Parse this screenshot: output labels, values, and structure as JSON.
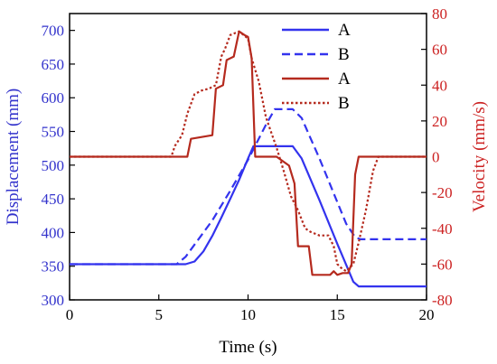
{
  "chart_data": {
    "type": "line",
    "xlabel": "Time (s)",
    "ylabel_left": "Displacement (mm)",
    "ylabel_right": "Velocity (mm/s)",
    "xlim": [
      0,
      20
    ],
    "ylim_left": [
      300,
      725
    ],
    "ylim_right": [
      -80,
      80
    ],
    "xticks": [
      0,
      5,
      10,
      15,
      20
    ],
    "yticks_left": [
      300,
      350,
      400,
      450,
      500,
      550,
      600,
      650,
      700
    ],
    "yticks_right": [
      -80,
      -60,
      -40,
      -20,
      0,
      20,
      40,
      60,
      80
    ],
    "legend_position": "top-right",
    "colors": {
      "displacement": "#3333ee",
      "velocity": "#b52a1e",
      "left_axis": "#3333cc",
      "right_axis": "#cc2222",
      "frame": "#000000"
    },
    "series": [
      {
        "name": "A",
        "axis": "left",
        "style": "solid",
        "color": "#3333ee",
        "x": [
          0,
          6.5,
          7.0,
          7.5,
          8.0,
          8.5,
          9.0,
          9.5,
          10.0,
          10.3,
          12.5,
          13.0,
          14.0,
          15.0,
          15.5,
          15.9,
          16.2,
          20
        ],
        "y": [
          353,
          353,
          357,
          372,
          395,
          422,
          450,
          478,
          510,
          528,
          528,
          510,
          448,
          383,
          352,
          327,
          320,
          320
        ]
      },
      {
        "name": "B",
        "axis": "left",
        "style": "dashed",
        "color": "#3333ee",
        "x": [
          0,
          6.0,
          6.5,
          7.0,
          8.0,
          9.0,
          10.0,
          11.0,
          11.5,
          12.5,
          13.0,
          14.0,
          15.0,
          15.5,
          16.0,
          16.3,
          20
        ],
        "y": [
          353,
          353,
          364,
          382,
          418,
          462,
          508,
          560,
          583,
          583,
          570,
          510,
          445,
          413,
          393,
          390,
          390
        ]
      },
      {
        "name": "A",
        "axis": "right",
        "style": "solid",
        "color": "#b52a1e",
        "x": [
          0,
          6.6,
          6.8,
          8.0,
          8.2,
          8.6,
          8.8,
          9.2,
          9.5,
          9.8,
          10.0,
          10.2,
          10.4,
          11.4,
          11.6,
          12.3,
          12.6,
          12.8,
          13.4,
          13.6,
          14.6,
          14.8,
          15.0,
          15.3,
          15.6,
          15.8,
          16.0,
          16.2,
          20
        ],
        "y": [
          0,
          0,
          10,
          12,
          38,
          40,
          54,
          56,
          70,
          68,
          67,
          55,
          0,
          0,
          0,
          -5,
          -15,
          -50,
          -50,
          -66,
          -66,
          -64,
          -66,
          -65,
          -65,
          -60,
          -10,
          0,
          0
        ]
      },
      {
        "name": "B",
        "axis": "right",
        "style": "dotted",
        "color": "#b52a1e",
        "x": [
          0,
          5.7,
          5.9,
          6.3,
          6.6,
          7.0,
          7.4,
          7.8,
          8.2,
          8.5,
          8.7,
          9.0,
          9.5,
          10.0,
          10.2,
          10.6,
          11.0,
          11.6,
          12.0,
          12.4,
          12.8,
          13.2,
          13.5,
          14.0,
          14.5,
          14.8,
          15.0,
          15.2,
          15.5,
          15.9,
          16.2,
          16.6,
          17.0,
          17.3,
          20
        ],
        "y": [
          0,
          0,
          6,
          12,
          24,
          35,
          37,
          38,
          40,
          56,
          60,
          68,
          70,
          66,
          55,
          42,
          22,
          5,
          -8,
          -22,
          -30,
          -40,
          -42,
          -44,
          -44,
          -50,
          -60,
          -62,
          -64,
          -60,
          -48,
          -30,
          -8,
          0,
          0
        ]
      }
    ]
  }
}
